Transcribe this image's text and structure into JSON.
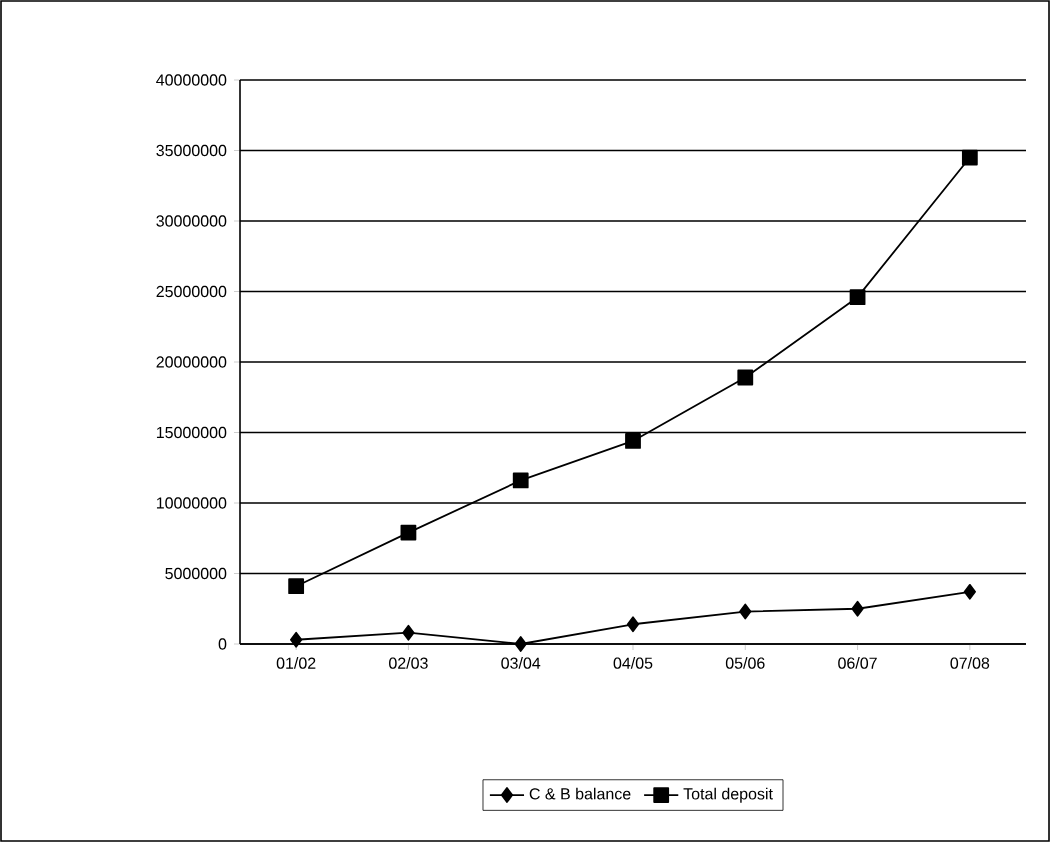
{
  "chart_data": {
    "type": "line",
    "categories": [
      "01/02",
      "02/03",
      "03/04",
      "04/05",
      "05/06",
      "06/07",
      "07/08"
    ],
    "series": [
      {
        "name": "C & B balance",
        "color": "#000000",
        "marker": "diamond",
        "values": [
          300000,
          800000,
          0,
          1400000,
          2300000,
          2500000,
          3700000
        ]
      },
      {
        "name": "Total deposit",
        "color": "#000000",
        "marker": "square",
        "values": [
          4100000,
          7900000,
          11600000,
          14400000,
          18900000,
          24600000,
          34500000
        ]
      }
    ],
    "ylim": [
      0,
      40000000
    ],
    "yticks": [
      0,
      5000000,
      10000000,
      15000000,
      20000000,
      25000000,
      30000000,
      35000000,
      40000000
    ],
    "grid": "y",
    "legend": "bottom",
    "line_style": "solid"
  }
}
